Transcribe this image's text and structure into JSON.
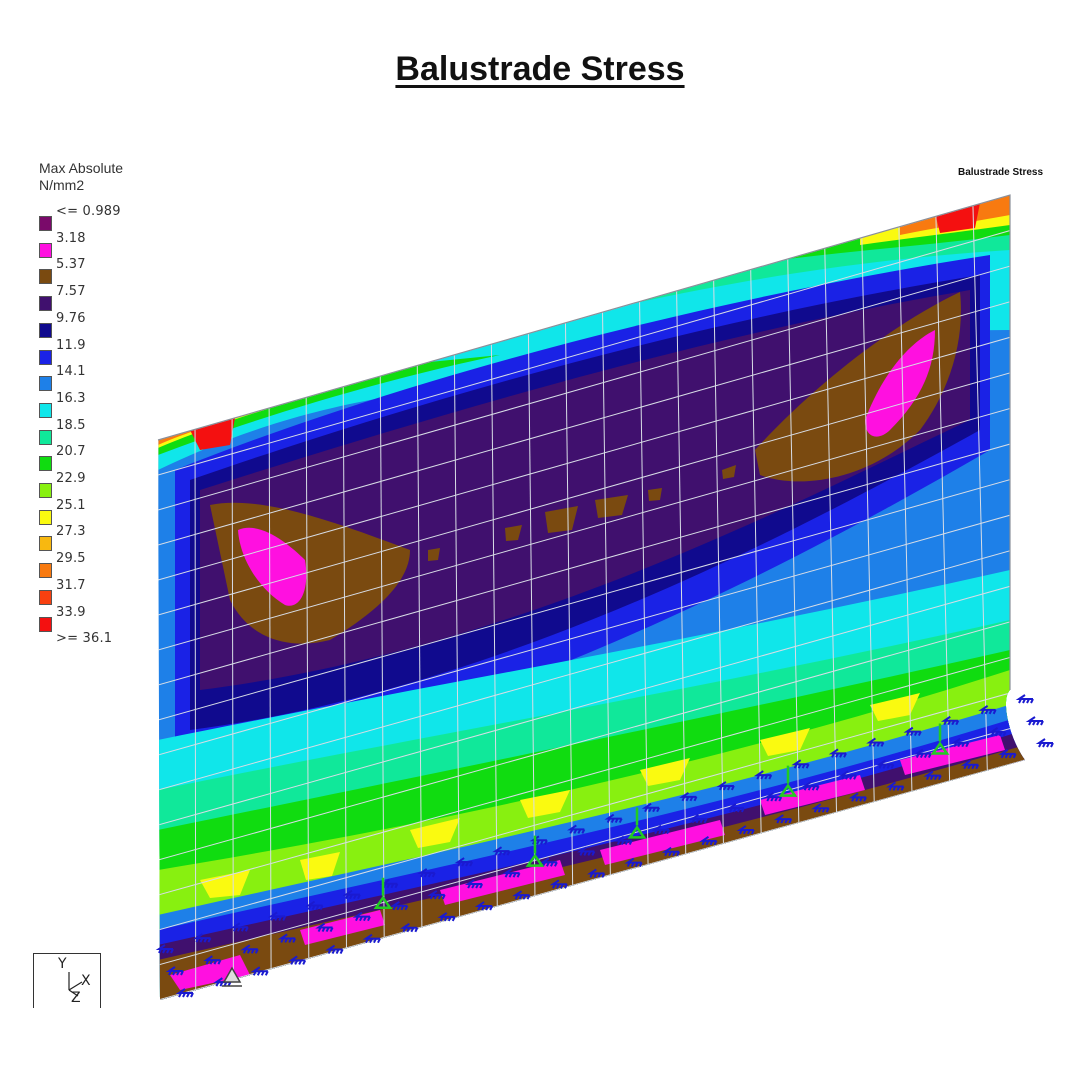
{
  "title": "Balustrade Stress",
  "panel_caption": "Balustrade Stress",
  "legend": {
    "heading_line1": "Max Absolute",
    "heading_line2": "N/mm2",
    "items": [
      {
        "label": "<= 0.989",
        "color": "#7a0a6a"
      },
      {
        "label": "3.18",
        "color": "#ff10e0"
      },
      {
        "label": "5.37",
        "color": "#7a4a10"
      },
      {
        "label": "7.57",
        "color": "#40106e"
      },
      {
        "label": "9.76",
        "color": "#100a8e"
      },
      {
        "label": "11.9",
        "color": "#1a22e6"
      },
      {
        "label": "14.1",
        "color": "#1e80e8"
      },
      {
        "label": "16.3",
        "color": "#10e6ea"
      },
      {
        "label": "18.5",
        "color": "#10e89a"
      },
      {
        "label": "20.7",
        "color": "#10dc10"
      },
      {
        "label": "22.9",
        "color": "#88f010"
      },
      {
        "label": "25.1",
        "color": "#fafa10"
      },
      {
        "label": "27.3",
        "color": "#f8b810"
      },
      {
        "label": "29.5",
        "color": "#f87a10"
      },
      {
        "label": "31.7",
        "color": "#f84010"
      },
      {
        "label": "33.9",
        "color": "#f41010"
      },
      {
        "label": ">= 36.1",
        "color": "#f41010"
      }
    ]
  },
  "axes": {
    "y": "Y",
    "x": "X",
    "z": "Z"
  },
  "colors": {
    "mesh_line": "#d8dde6",
    "support_blue": "#1a1ad0",
    "support_green": "#22cc22"
  }
}
